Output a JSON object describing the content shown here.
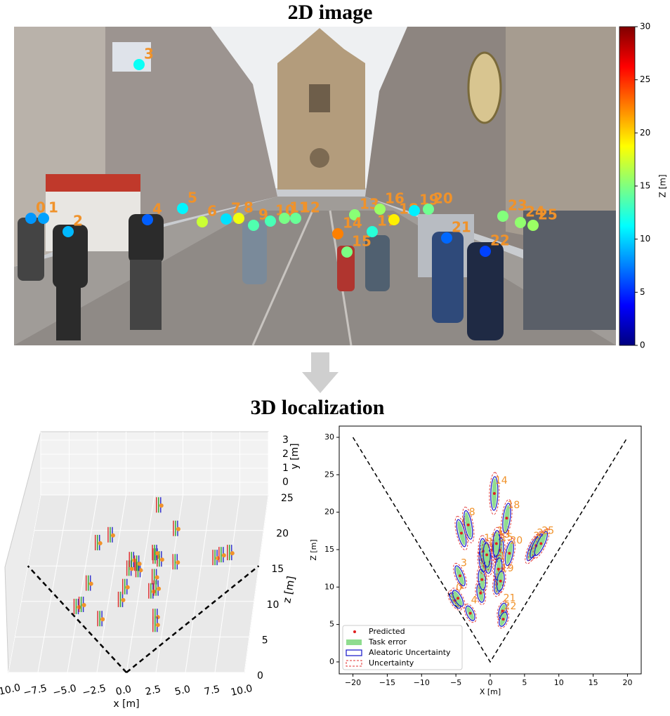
{
  "header": {
    "title_2d": "2D image",
    "title_3d": "3D localization"
  },
  "detections": [
    {
      "label": "0",
      "x": -5.1,
      "z": 8.2
    },
    {
      "label": "1",
      "x": -4.7,
      "z": 8.5
    },
    {
      "label": "2",
      "x": -1.4,
      "z": 9.2
    },
    {
      "label": "3",
      "x": -4.4,
      "z": 11.5
    },
    {
      "label": "4",
      "x": -2.9,
      "z": 6.5
    },
    {
      "label": "5",
      "x": -1.2,
      "z": 11.0
    },
    {
      "label": "6",
      "x": -4.2,
      "z": 17.2
    },
    {
      "label": "7",
      "x": 1.1,
      "z": 10.4
    },
    {
      "label": "8",
      "x": -3.2,
      "z": 18.3
    },
    {
      "label": "9",
      "x": -1.1,
      "z": 13.6
    },
    {
      "label": "10",
      "x": -0.3,
      "z": 13.4
    },
    {
      "label": "11",
      "x": -1.0,
      "z": 14.8
    },
    {
      "label": "12",
      "x": -0.5,
      "z": 14.3
    },
    {
      "label": "13",
      "x": 1.0,
      "z": 15.3
    },
    {
      "label": "14",
      "x": 0.6,
      "z": 22.5
    },
    {
      "label": "15",
      "x": 1.4,
      "z": 14.9
    },
    {
      "label": "16",
      "x": 0.9,
      "z": 15.8
    },
    {
      "label": "17",
      "x": 1.2,
      "z": 12.4
    },
    {
      "label": "18",
      "x": 2.4,
      "z": 19.2
    },
    {
      "label": "19",
      "x": 1.5,
      "z": 10.8
    },
    {
      "label": "20",
      "x": 2.8,
      "z": 14.5
    },
    {
      "label": "21",
      "x": 1.8,
      "z": 6.8
    },
    {
      "label": "22",
      "x": 1.9,
      "z": 5.7
    },
    {
      "label": "23",
      "x": 6.2,
      "z": 15.1
    },
    {
      "label": "24",
      "x": 6.7,
      "z": 15.5
    },
    {
      "label": "25",
      "x": 7.4,
      "z": 15.8
    }
  ],
  "colorbar": {
    "label": "Z [m]",
    "lim": [
      0,
      30
    ],
    "ticks": [
      0,
      5,
      10,
      15,
      20,
      25,
      30
    ]
  },
  "plot_3d": {
    "xlabel": "x [m]",
    "ylabel": "y [m]",
    "zlabel": "z [m]",
    "xlim": [
      -10,
      10
    ],
    "xticks": [
      {
        "value": -10,
        "label": "−10.0"
      },
      {
        "value": -7.5,
        "label": "−7.5"
      },
      {
        "value": -5,
        "label": "−5.0"
      },
      {
        "value": -2.5,
        "label": "−2.5"
      },
      {
        "value": 0,
        "label": "0.0"
      },
      {
        "value": 2.5,
        "label": "2.5"
      },
      {
        "value": 5,
        "label": "5.0"
      },
      {
        "value": 7.5,
        "label": "7.5"
      },
      {
        "value": 10,
        "label": "10.0"
      }
    ],
    "ylim": [
      0,
      3
    ],
    "yticks": [
      0,
      1,
      2,
      3
    ],
    "zlim": [
      0,
      25
    ],
    "zticks": [
      0,
      5,
      10,
      15,
      20,
      25
    ]
  },
  "plot_bev": {
    "xlabel": "X [m]",
    "ylabel": "Z [m]",
    "xlim": [
      -22,
      22
    ],
    "xticks": [
      {
        "value": -20,
        "label": "−20"
      },
      {
        "value": -15,
        "label": "−15"
      },
      {
        "value": -10,
        "label": "−10"
      },
      {
        "value": -5,
        "label": "−5"
      },
      0,
      5,
      10,
      15,
      20
    ],
    "ylim": [
      -1.6,
      31.5
    ],
    "yticks": [
      0,
      5,
      10,
      15,
      20,
      25,
      30
    ],
    "legend": [
      "Predicted",
      "Task error",
      "Aleatoric Uncertainty",
      "Uncertainty"
    ],
    "fov": {
      "x": [
        -20,
        0,
        20
      ],
      "z": [
        30,
        0,
        30
      ]
    }
  }
}
